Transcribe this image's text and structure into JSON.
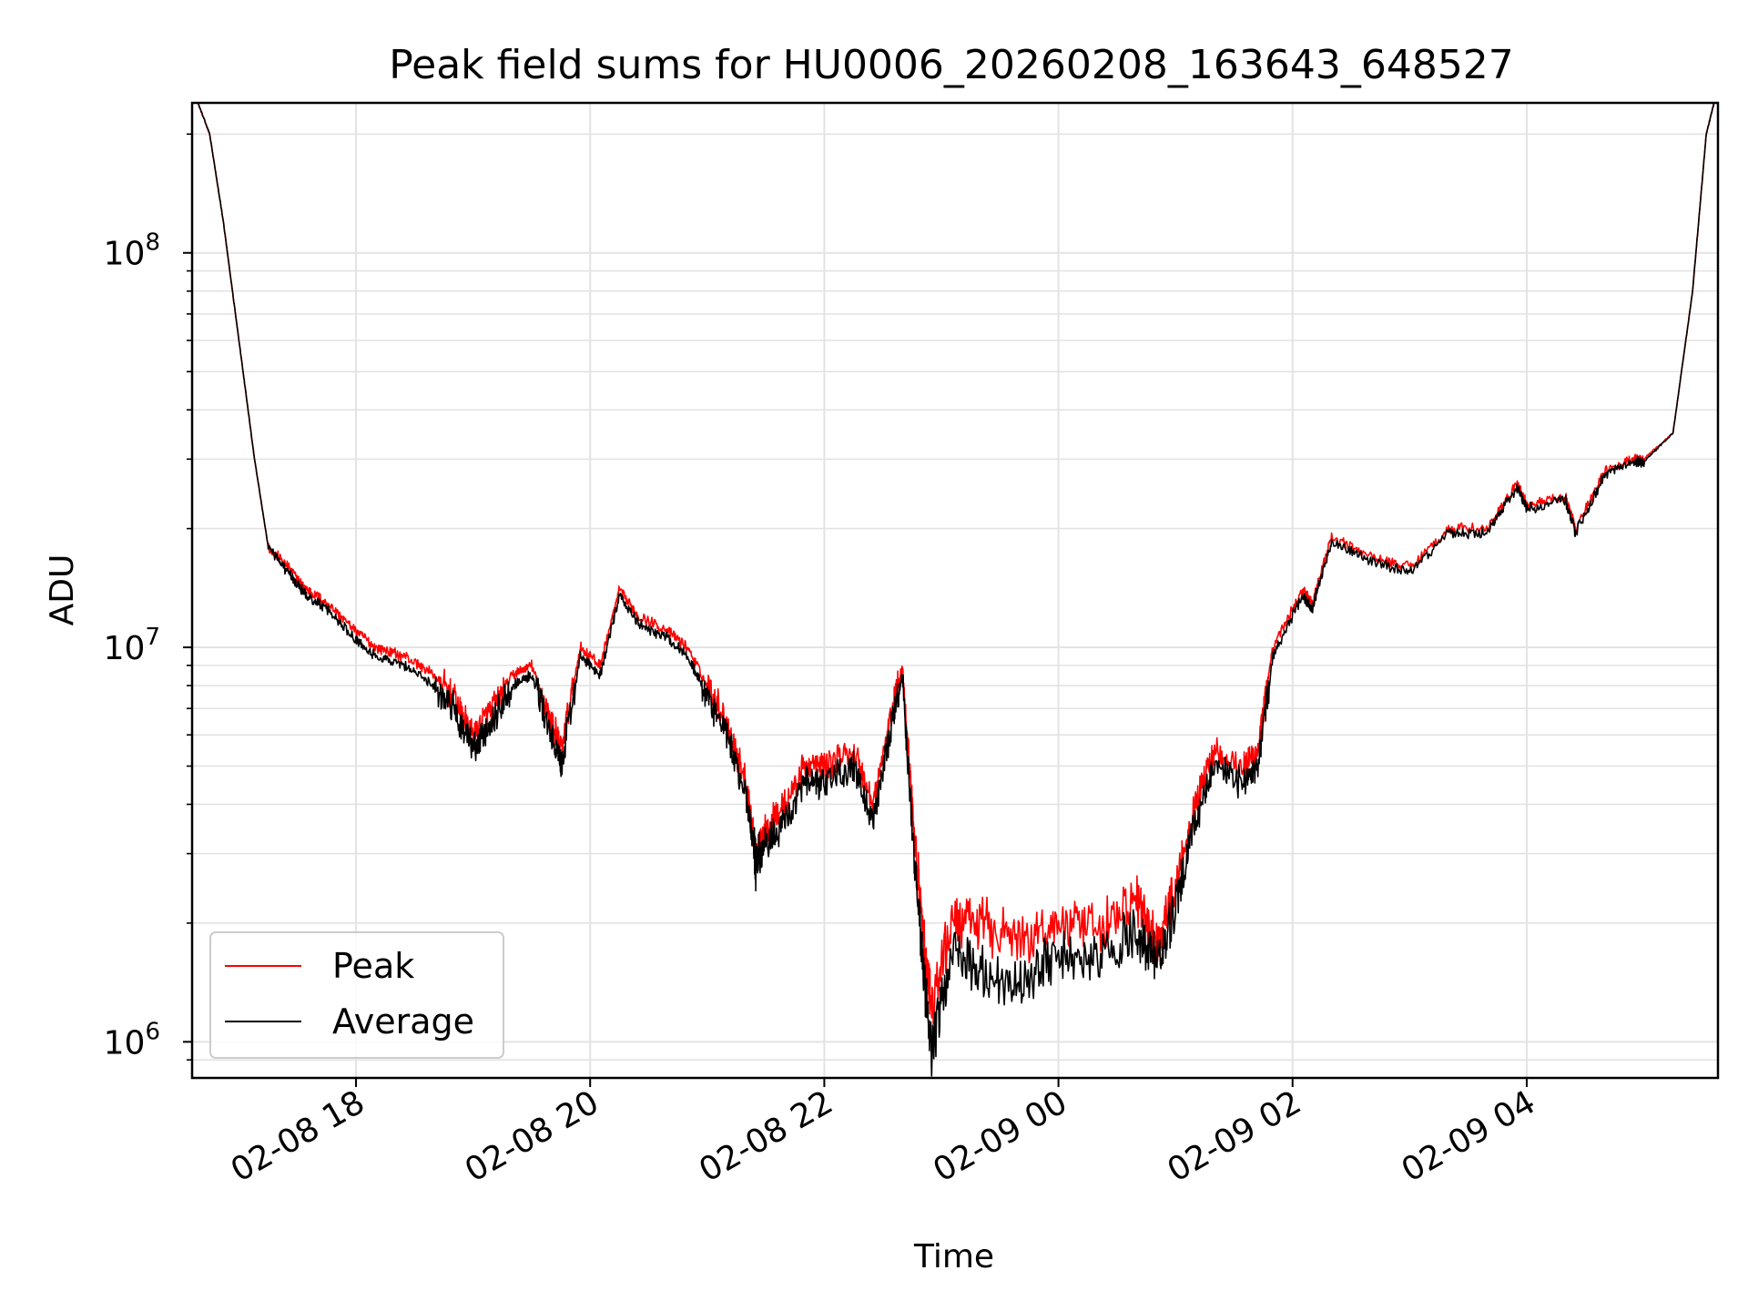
{
  "chart_data": {
    "type": "line",
    "title": "Peak field sums for HU0006_20260208_163643_648527",
    "xlabel": "Time",
    "ylabel": "ADU",
    "yscale": "log",
    "ylim": [
      810000,
      240000000
    ],
    "xlim": [
      "2026-02-08 16:36",
      "2026-02-09 05:38"
    ],
    "x_ticks": [
      {
        "value": "2026-02-08 18:00",
        "label": "02-08 18"
      },
      {
        "value": "2026-02-08 20:00",
        "label": "02-08 20"
      },
      {
        "value": "2026-02-08 22:00",
        "label": "02-08 22"
      },
      {
        "value": "2026-02-09 00:00",
        "label": "02-09 00"
      },
      {
        "value": "2026-02-09 02:00",
        "label": "02-09 02"
      },
      {
        "value": "2026-02-09 04:00",
        "label": "02-09 04"
      }
    ],
    "y_ticks": [
      {
        "value": 1000000,
        "base": "10",
        "exp": "6"
      },
      {
        "value": 10000000,
        "base": "10",
        "exp": "7"
      },
      {
        "value": 100000000,
        "base": "10",
        "exp": "8"
      }
    ],
    "grid": true,
    "legend_position": "lower-left",
    "x": [
      "2026-02-08 16:39",
      "2026-02-08 16:45",
      "2026-02-08 16:52",
      "2026-02-08 17:00",
      "2026-02-08 17:08",
      "2026-02-08 17:15",
      "2026-02-08 17:25",
      "2026-02-08 17:35",
      "2026-02-08 17:45",
      "2026-02-08 18:00",
      "2026-02-08 18:10",
      "2026-02-08 18:25",
      "2026-02-08 18:40",
      "2026-02-08 18:50",
      "2026-02-08 19:00",
      "2026-02-08 19:10",
      "2026-02-08 19:20",
      "2026-02-08 19:30",
      "2026-02-08 19:40",
      "2026-02-08 19:45",
      "2026-02-08 19:55",
      "2026-02-08 20:05",
      "2026-02-08 20:15",
      "2026-02-08 20:25",
      "2026-02-08 20:40",
      "2026-02-08 20:50",
      "2026-02-08 21:00",
      "2026-02-08 21:10",
      "2026-02-08 21:20",
      "2026-02-08 21:25",
      "2026-02-08 21:30",
      "2026-02-08 21:40",
      "2026-02-08 21:50",
      "2026-02-08 22:00",
      "2026-02-08 22:15",
      "2026-02-08 22:25",
      "2026-02-08 22:35",
      "2026-02-08 22:40",
      "2026-02-08 22:45",
      "2026-02-08 22:50",
      "2026-02-08 22:55",
      "2026-02-08 23:05",
      "2026-02-08 23:20",
      "2026-02-08 23:40",
      "2026-02-09 00:00",
      "2026-02-09 00:20",
      "2026-02-09 00:40",
      "2026-02-09 00:50",
      "2026-02-09 01:00",
      "2026-02-09 01:10",
      "2026-02-09 01:20",
      "2026-02-09 01:35",
      "2026-02-09 01:42",
      "2026-02-09 01:50",
      "2026-02-09 02:05",
      "2026-02-09 02:10",
      "2026-02-09 02:20",
      "2026-02-09 02:40",
      "2026-02-09 03:00",
      "2026-02-09 03:20",
      "2026-02-09 03:40",
      "2026-02-09 03:55",
      "2026-02-09 04:00",
      "2026-02-09 04:20",
      "2026-02-09 04:25",
      "2026-02-09 04:40",
      "2026-02-09 04:55",
      "2026-02-09 05:00",
      "2026-02-09 05:15",
      "2026-02-09 05:25",
      "2026-02-09 05:32",
      "2026-02-09 05:36"
    ],
    "series": [
      {
        "name": "Peak",
        "color": "#ff0000",
        "values": [
          240000000,
          200000000,
          120000000,
          60000000,
          30000000,
          18000000,
          16000000,
          14000000,
          13000000,
          11000000,
          10000000,
          9500000,
          8500000,
          7500000,
          6000000,
          7000000,
          8500000,
          9000000,
          6500000,
          5500000,
          10000000,
          9000000,
          14000000,
          12000000,
          11000000,
          10000000,
          8000000,
          6500000,
          4500000,
          3000000,
          3500000,
          4000000,
          5000000,
          5000000,
          5500000,
          4000000,
          7000000,
          9000000,
          4000000,
          2000000,
          1200000,
          2000000,
          2000000,
          1800000,
          2000000,
          1900000,
          2300000,
          1800000,
          2500000,
          4000000,
          5500000,
          5000000,
          5500000,
          10000000,
          14000000,
          13000000,
          19000000,
          17000000,
          16000000,
          20000000,
          20000000,
          26000000,
          23000000,
          24000000,
          20000000,
          28000000,
          30000000,
          30000000,
          35000000,
          80000000,
          200000000,
          240000000
        ]
      },
      {
        "name": "Average",
        "color": "#000000",
        "values": [
          240000000,
          200000000,
          120000000,
          60000000,
          30000000,
          18000000,
          15500000,
          13500000,
          12500000,
          10500000,
          9500000,
          9000000,
          8000000,
          7000000,
          5500000,
          6500000,
          8000000,
          8500000,
          6000000,
          5000000,
          9500000,
          8500000,
          13500000,
          11500000,
          10500000,
          9500000,
          7500000,
          6000000,
          4200000,
          2800000,
          3200000,
          3600000,
          4500000,
          4500000,
          5000000,
          3600000,
          6500000,
          8500000,
          3500000,
          1700000,
          900000,
          1700000,
          1500000,
          1400000,
          1650000,
          1600000,
          1900000,
          1600000,
          2200000,
          3600000,
          5000000,
          4500000,
          5000000,
          9500000,
          13500000,
          12500000,
          18500000,
          16500000,
          15500000,
          19500000,
          19500000,
          25500000,
          22500000,
          23500000,
          19500000,
          27500000,
          29500000,
          29500000,
          35000000,
          80000000,
          200000000,
          240000000
        ]
      }
    ]
  }
}
